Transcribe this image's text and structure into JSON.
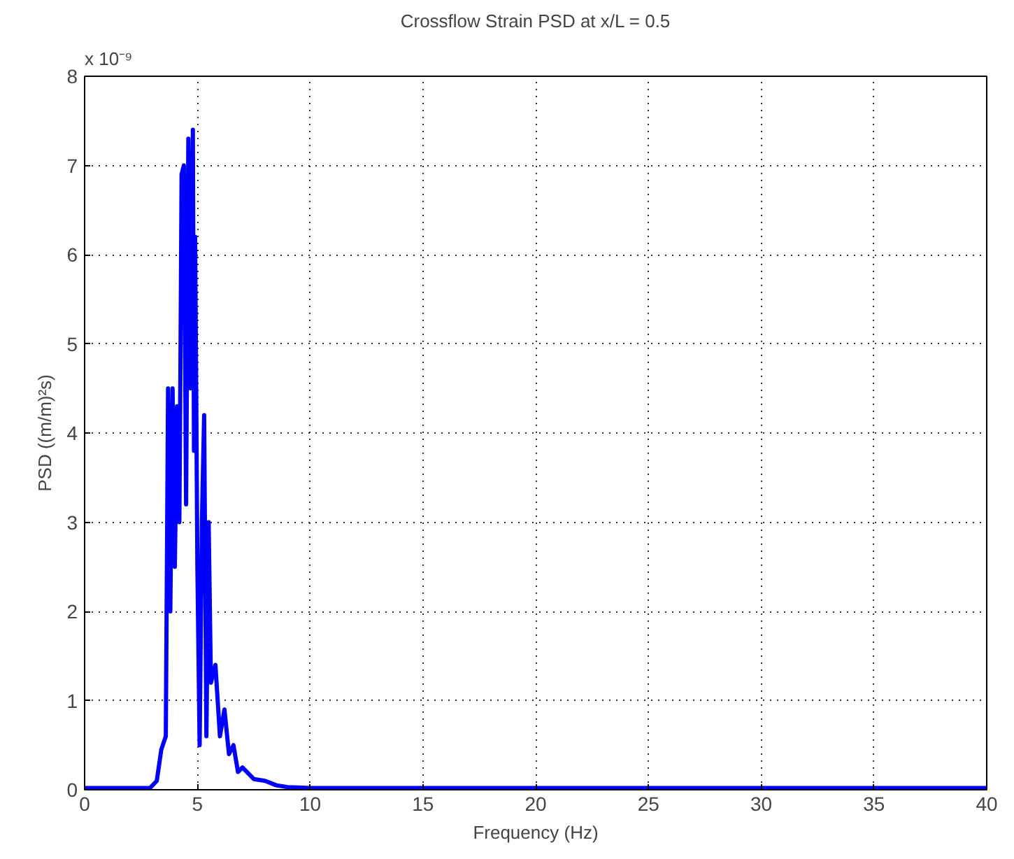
{
  "chart_data": {
    "type": "line",
    "title": "Crossflow Strain PSD at x/L = 0.5",
    "xlabel": "Frequency (Hz)",
    "ylabel": "PSD ((m/m)²s)",
    "annotations": [
      "x 10⁻⁹"
    ],
    "x": [
      0,
      2.9,
      3.2,
      3.4,
      3.6,
      3.7,
      3.8,
      3.9,
      4.0,
      4.1,
      4.2,
      4.25,
      4.3,
      4.4,
      4.5,
      4.6,
      4.7,
      4.8,
      4.85,
      4.9,
      5.0,
      5.1,
      5.2,
      5.3,
      5.4,
      5.5,
      5.6,
      5.8,
      6.0,
      6.2,
      6.4,
      6.6,
      6.8,
      7.0,
      7.5,
      8.0,
      8.5,
      9,
      10,
      40
    ],
    "series": [
      {
        "color": "#0000ff",
        "values": [
          0.02,
          0.02,
          0.1,
          0.45,
          0.6,
          4.5,
          2.0,
          4.5,
          2.5,
          4.3,
          3.0,
          4.8,
          6.9,
          7.0,
          3.2,
          7.3,
          4.5,
          7.4,
          3.8,
          6.2,
          2.5,
          0.5,
          3.0,
          4.2,
          0.6,
          3.0,
          1.2,
          1.4,
          0.6,
          0.9,
          0.4,
          0.5,
          0.2,
          0.25,
          0.12,
          0.1,
          0.05,
          0.03,
          0.02,
          0.02
        ]
      }
    ],
    "xlim": [
      0,
      40
    ],
    "ylim": [
      0,
      8
    ],
    "xticks": [
      0,
      5,
      10,
      15,
      20,
      25,
      30,
      35,
      40
    ],
    "yticks": [
      0,
      1,
      2,
      3,
      4,
      5,
      6,
      7,
      8
    ],
    "grid": true,
    "line_style": "solid"
  }
}
